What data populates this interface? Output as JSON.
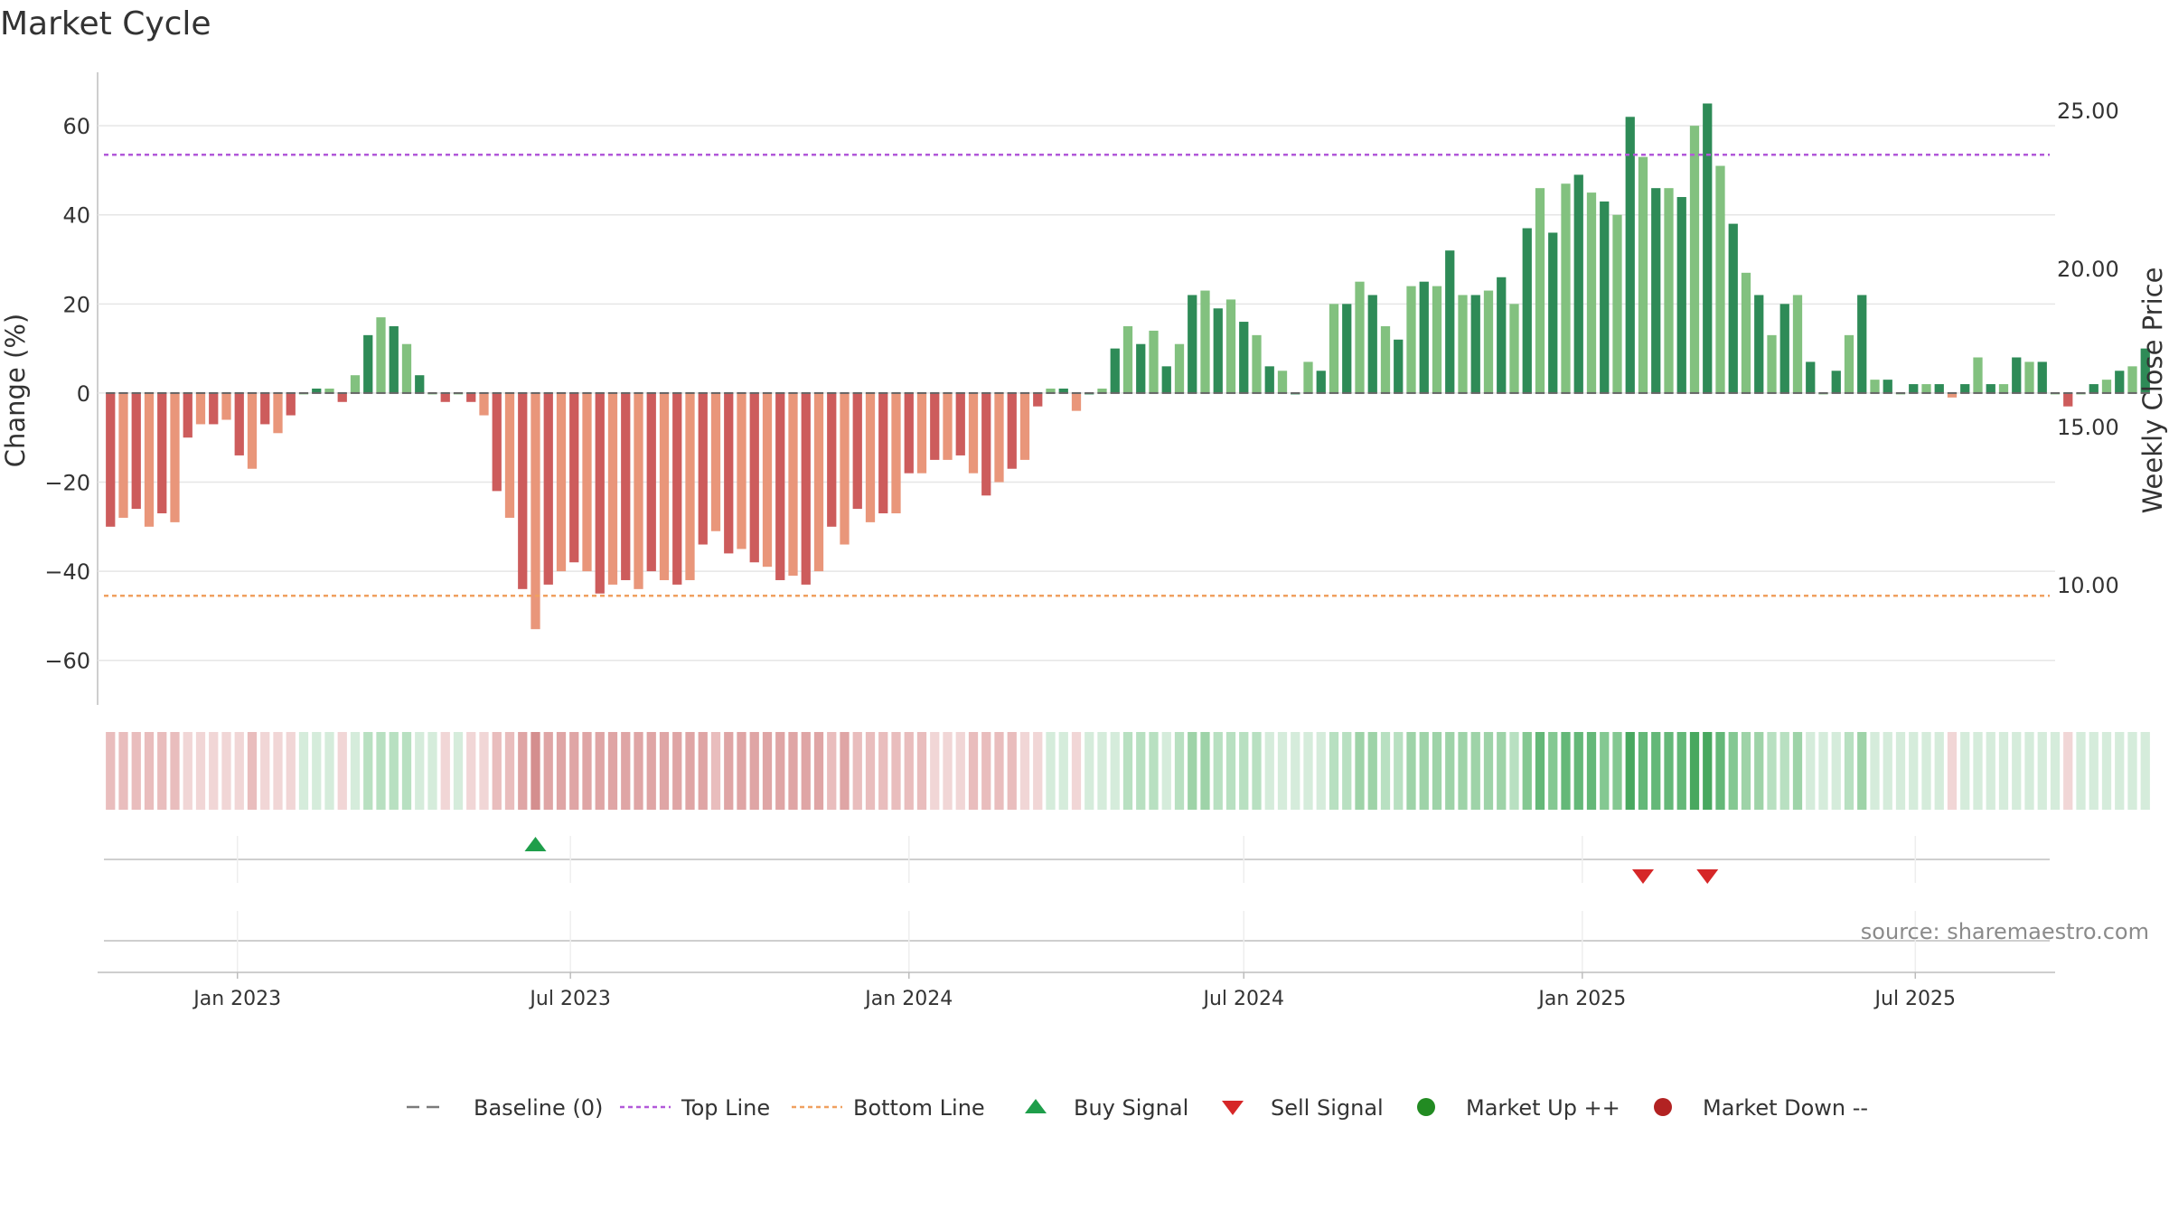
{
  "chart_data": {
    "type": "bar",
    "title": "Market Cycle",
    "ylabel": "Change (%)",
    "y2label": "Weekly Close Price",
    "ylim": [
      -70,
      72
    ],
    "y2lim": [
      6.2,
      26.2
    ],
    "yticks": [
      -60,
      -40,
      -20,
      0,
      20,
      40,
      60
    ],
    "yticklabels": [
      "−60",
      "−40",
      "−20",
      "0",
      "20",
      "40",
      "60"
    ],
    "y2ticks": [
      10,
      15,
      20,
      25
    ],
    "y2ticklabels": [
      "10.00",
      "15.00",
      "20.00",
      "25.00"
    ],
    "xrange": [
      "2022-10-17",
      "2025-09-15"
    ],
    "xticks": [
      {
        "label": "Jan 2023",
        "date": "2023-01-01"
      },
      {
        "label": "Jul 2023",
        "date": "2023-07-01"
      },
      {
        "label": "Jan 2024",
        "date": "2024-01-01"
      },
      {
        "label": "Jul 2024",
        "date": "2024-07-01"
      },
      {
        "label": "Jan 2025",
        "date": "2025-01-01"
      },
      {
        "label": "Jul 2025",
        "date": "2025-07-01"
      }
    ],
    "first_week": "2022-10-24",
    "values": [
      -30,
      -28,
      -26,
      -30,
      -27,
      -29,
      -10,
      -7,
      -7,
      -6,
      -14,
      -17,
      -7,
      -9,
      -5,
      0,
      1,
      1,
      -2,
      4,
      13,
      17,
      15,
      11,
      4,
      0,
      -2,
      0,
      -2,
      -5,
      -22,
      -28,
      -44,
      -53,
      -43,
      -40,
      -38,
      -40,
      -45,
      -43,
      -42,
      -44,
      -40,
      -42,
      -43,
      -42,
      -34,
      -31,
      -36,
      -35,
      -38,
      -39,
      -42,
      -41,
      -43,
      -40,
      -30,
      -34,
      -26,
      -29,
      -27,
      -27,
      -18,
      -18,
      -15,
      -15,
      -14,
      -18,
      -23,
      -20,
      -17,
      -15,
      -3,
      1,
      1,
      -4,
      0,
      1,
      10,
      15,
      11,
      14,
      6,
      11,
      22,
      23,
      19,
      21,
      16,
      13,
      6,
      5,
      0,
      7,
      5,
      20,
      20,
      25,
      22,
      15,
      12,
      24,
      25,
      24,
      32,
      22,
      22,
      23,
      26,
      20,
      37,
      46,
      36,
      47,
      49,
      45,
      43,
      40,
      62,
      53,
      46,
      46,
      44,
      60,
      65,
      51,
      38,
      27,
      22,
      13,
      20,
      22,
      7,
      0,
      5,
      13,
      22,
      3,
      3,
      0,
      2,
      2,
      2,
      -1,
      2,
      8,
      2,
      2,
      8,
      7,
      7,
      0,
      -3,
      0,
      2,
      3,
      5,
      6,
      10
    ],
    "bar_colors": {
      "strong_up": "#2e8b57",
      "weak_up": "#82c17f",
      "strong_down": "#cd5c5c",
      "weak_down": "#e9967a"
    },
    "top_line": {
      "value": 53.5,
      "color": "#b259d9"
    },
    "bottom_line": {
      "value": -45.5,
      "color": "#f0a060"
    },
    "strip_colors": {
      "up": [
        "#d5ecdb",
        "#b8e0c1",
        "#9ed3a8",
        "#84c892",
        "#64b878",
        "#48a85f"
      ],
      "down": [
        "#f1d6d6",
        "#e9bdbd",
        "#dfa5a5",
        "#d48e8e"
      ]
    },
    "buy_signals": [
      33
    ],
    "sell_signals": [
      119,
      124
    ],
    "signal_colors": {
      "buy": "#1e9e4a",
      "sell": "#d62728"
    },
    "source": "source: sharemaestro.com",
    "legend": [
      {
        "label": "Baseline (0)",
        "marker": "dash",
        "color": "#7a7a7a"
      },
      {
        "label": "Top Line",
        "marker": "dotted",
        "color": "#b259d9"
      },
      {
        "label": "Bottom Line",
        "marker": "dotted",
        "color": "#f0a060"
      },
      {
        "label": "Buy Signal",
        "marker": "triangle-up",
        "color": "#1e9e4a"
      },
      {
        "label": "Sell Signal",
        "marker": "triangle-down",
        "color": "#d62728"
      },
      {
        "label": "Market Up ++",
        "marker": "circle",
        "color": "#228b22"
      },
      {
        "label": "Market Down --",
        "marker": "circle",
        "color": "#b22222"
      }
    ]
  }
}
